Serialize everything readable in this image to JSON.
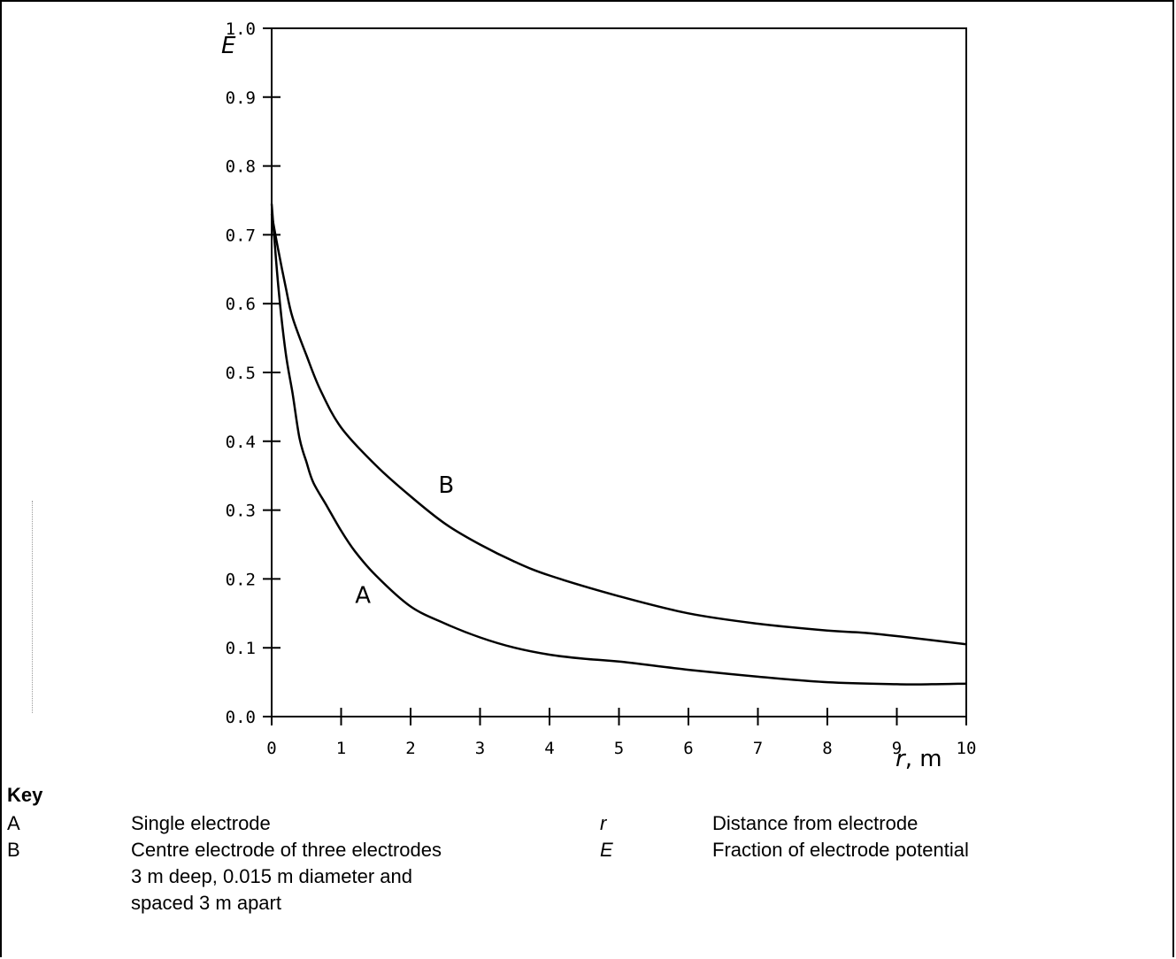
{
  "chart_data": {
    "type": "line",
    "xlabel": {
      "symbol": "r",
      "unit": ", m"
    },
    "ylabel": {
      "symbol": "E"
    },
    "xlim": [
      0,
      10
    ],
    "ylim": [
      0.0,
      1.0
    ],
    "x_ticks": [
      "0",
      "1",
      "2",
      "3",
      "4",
      "5",
      "6",
      "7",
      "8",
      "9",
      "10"
    ],
    "y_ticks": [
      "0.0",
      "0.1",
      "0.2",
      "0.3",
      "0.4",
      "0.5",
      "0.6",
      "0.7",
      "0.8",
      "0.9",
      "1.0"
    ],
    "grid": false,
    "series": [
      {
        "name": "A",
        "label_at": [
          1.2,
          0.165
        ],
        "points": [
          [
            0,
            0.745
          ],
          [
            0.1,
            0.62
          ],
          [
            0.2,
            0.53
          ],
          [
            0.3,
            0.47
          ],
          [
            0.4,
            0.405
          ],
          [
            0.5,
            0.37
          ],
          [
            0.6,
            0.34
          ],
          [
            0.8,
            0.305
          ],
          [
            1.0,
            0.27
          ],
          [
            1.2,
            0.24
          ],
          [
            1.5,
            0.205
          ],
          [
            2.0,
            0.16
          ],
          [
            2.5,
            0.135
          ],
          [
            3.0,
            0.115
          ],
          [
            3.5,
            0.1
          ],
          [
            4.0,
            0.09
          ],
          [
            4.5,
            0.084
          ],
          [
            5.0,
            0.08
          ],
          [
            6.0,
            0.068
          ],
          [
            7.0,
            0.058
          ],
          [
            8.0,
            0.05
          ],
          [
            9.0,
            0.047
          ],
          [
            9.5,
            0.047
          ],
          [
            10.0,
            0.048
          ]
        ]
      },
      {
        "name": "B",
        "label_at": [
          2.4,
          0.325
        ],
        "points": [
          [
            0,
            0.73
          ],
          [
            0.1,
            0.675
          ],
          [
            0.2,
            0.625
          ],
          [
            0.3,
            0.58
          ],
          [
            0.5,
            0.525
          ],
          [
            0.7,
            0.475
          ],
          [
            1.0,
            0.42
          ],
          [
            1.5,
            0.365
          ],
          [
            2.0,
            0.32
          ],
          [
            2.5,
            0.28
          ],
          [
            3.0,
            0.25
          ],
          [
            3.5,
            0.225
          ],
          [
            4.0,
            0.205
          ],
          [
            5.0,
            0.175
          ],
          [
            6.0,
            0.15
          ],
          [
            7.0,
            0.135
          ],
          [
            8.0,
            0.125
          ],
          [
            8.5,
            0.122
          ],
          [
            9.0,
            0.117
          ],
          [
            10.0,
            0.105
          ]
        ]
      }
    ]
  },
  "key": {
    "title": "Key",
    "entries": [
      {
        "symbol": "A",
        "text": "Single electrode"
      },
      {
        "symbol": "B",
        "text": "Centre electrode of three electrodes\n3 m deep, 0.015 m diameter and\nspaced 3 m apart"
      },
      {
        "symbol": "r",
        "text": "Distance from electrode"
      },
      {
        "symbol": "E",
        "text": "Fraction of electrode potential"
      }
    ]
  }
}
